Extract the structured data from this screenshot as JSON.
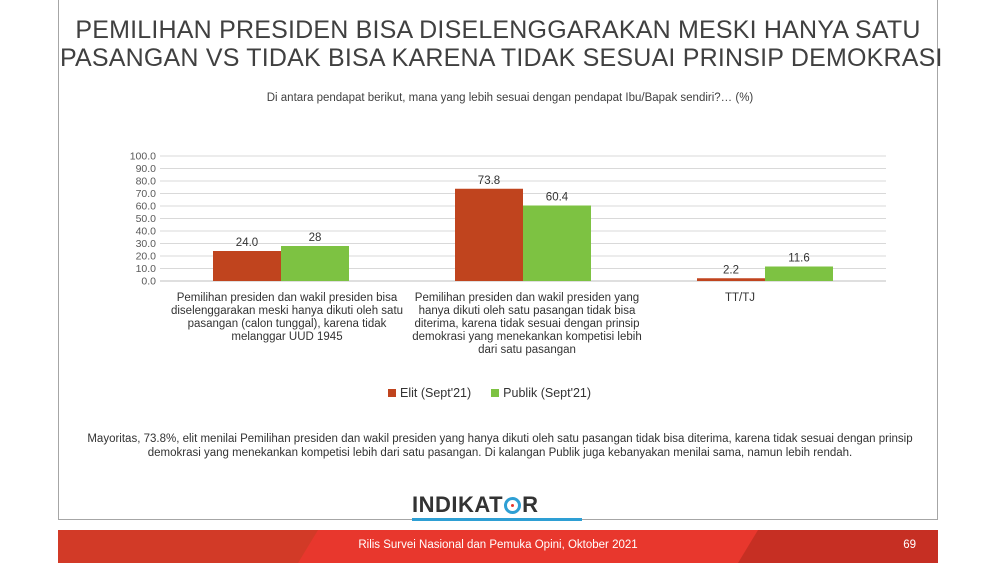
{
  "title": {
    "line1": "PEMILIHAN PRESIDEN BISA DISELENGGARAKAN MESKI HANYA SATU",
    "line2": "PASANGAN VS TIDAK BISA KARENA TIDAK SESUAI PRINSIP DEMOKRASI"
  },
  "subtitle": "Di antara pendapat berikut, mana yang lebih sesuai dengan pendapat Ibu/Bapak sendiri?… (%)",
  "chart_data": {
    "type": "bar",
    "categories": [
      "Pemilihan presiden dan wakil presiden bisa diselenggarakan meski hanya dikuti oleh satu pasangan (calon tunggal), karena tidak melanggar UUD 1945",
      "Pemilihan presiden dan wakil presiden yang hanya dikuti oleh satu pasangan tidak bisa diterima, karena tidak sesuai dengan prinsip demokrasi yang menekankan kompetisi lebih dari satu pasangan",
      "TT/TJ"
    ],
    "series": [
      {
        "name": "Elit (Sept'21)",
        "values": [
          24.0,
          73.8,
          2.2
        ],
        "labels": [
          "24.0",
          "73.8",
          "2.2"
        ],
        "color": "#c0441e"
      },
      {
        "name": "Publik (Sept'21)",
        "values": [
          28,
          60.4,
          11.6
        ],
        "labels": [
          "28",
          "60.4",
          "11.6"
        ],
        "color": "#7dc242"
      }
    ],
    "ylim": [
      0,
      100
    ],
    "yticks": [
      "100.0",
      "90.0",
      "80.0",
      "70.0",
      "60.0",
      "50.0",
      "40.0",
      "30.0",
      "20.0",
      "10.0",
      "0.0"
    ],
    "grid": true,
    "legend": "bottom-center"
  },
  "legend": {
    "elit": "Elit (Sept'21)",
    "publik": "Publik (Sept'21)"
  },
  "note": "Mayoritas, 73.8%, elit menilai Pemilihan presiden dan wakil presiden yang hanya dikuti oleh satu pasangan tidak bisa diterima, karena tidak sesuai dengan prinsip demokrasi yang menekankan kompetisi lebih dari satu pasangan. Di kalangan Publik juga kebanyakan menilai sama, namun lebih rendah.",
  "logo": {
    "part1": "INDIKAT",
    "part2": "R"
  },
  "footer": {
    "text": "Rilis Survei Nasional dan Pemuka Opini, Oktober 2021",
    "page": "69"
  },
  "colors": {
    "elit": "#c0441e",
    "publik": "#7dc242",
    "footer": "#e8372d",
    "footer_dark": "#c62f23"
  }
}
